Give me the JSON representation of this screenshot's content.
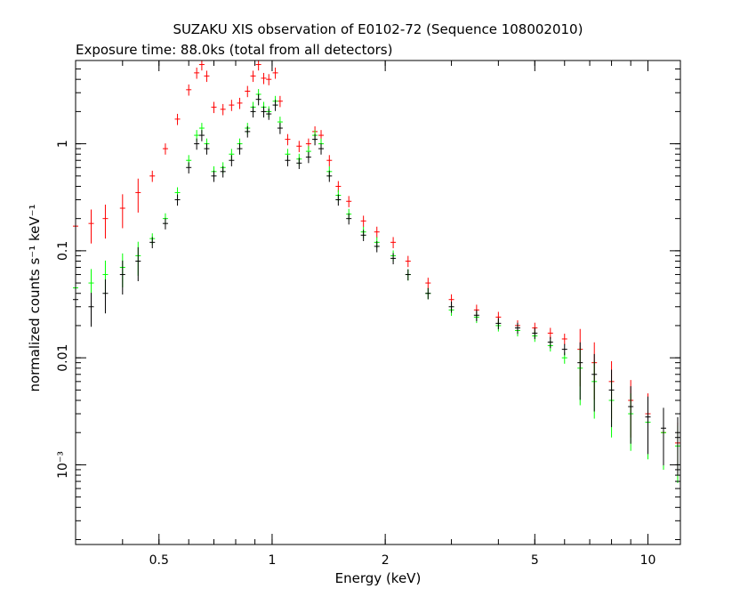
{
  "chart_data": {
    "type": "scatter",
    "title": "SUZAKU XIS observation of E0102-72 (Sequence 108002010)",
    "subtitle": "Exposure time: 88.0ks (total from all detectors)",
    "xlabel": "Energy (keV)",
    "ylabel": "normalized counts s⁻¹ keV⁻¹",
    "x_scale": "log",
    "y_scale": "log",
    "xlim": [
      0.3,
      12.2
    ],
    "ylim": [
      0.00018,
      6.0
    ],
    "x_ticks": [
      {
        "value": 0.5,
        "label": "0.5"
      },
      {
        "value": 1,
        "label": "1"
      },
      {
        "value": 2,
        "label": "2"
      },
      {
        "value": 5,
        "label": "5"
      },
      {
        "value": 10,
        "label": "10"
      }
    ],
    "y_ticks": [
      {
        "value": 0.001,
        "label": "10⁻³"
      },
      {
        "value": 0.01,
        "label": "0.01"
      },
      {
        "value": 0.1,
        "label": "0.1"
      },
      {
        "value": 1,
        "label": "1"
      }
    ],
    "grid": false,
    "legend": "none",
    "series": [
      {
        "color": "#ff0000",
        "points": [
          [
            0.3,
            0.17
          ],
          [
            0.33,
            0.18
          ],
          [
            0.36,
            0.2
          ],
          [
            0.4,
            0.25
          ],
          [
            0.44,
            0.35
          ],
          [
            0.48,
            0.5
          ],
          [
            0.52,
            0.9
          ],
          [
            0.56,
            1.7
          ],
          [
            0.6,
            3.2
          ],
          [
            0.63,
            4.6
          ],
          [
            0.65,
            5.5
          ],
          [
            0.67,
            4.3
          ],
          [
            0.7,
            2.2
          ],
          [
            0.74,
            2.1
          ],
          [
            0.78,
            2.3
          ],
          [
            0.82,
            2.4
          ],
          [
            0.86,
            3.1
          ],
          [
            0.89,
            4.3
          ],
          [
            0.92,
            5.5
          ],
          [
            0.95,
            4.1
          ],
          [
            0.98,
            4.0
          ],
          [
            1.02,
            4.6
          ],
          [
            1.05,
            2.5
          ],
          [
            1.1,
            1.1
          ],
          [
            1.18,
            0.95
          ],
          [
            1.25,
            1.0
          ],
          [
            1.3,
            1.3
          ],
          [
            1.35,
            1.2
          ],
          [
            1.42,
            0.7
          ],
          [
            1.5,
            0.4
          ],
          [
            1.6,
            0.29
          ],
          [
            1.75,
            0.19
          ],
          [
            1.9,
            0.15
          ],
          [
            2.1,
            0.12
          ],
          [
            2.3,
            0.08
          ],
          [
            2.6,
            0.05
          ],
          [
            3.0,
            0.035
          ],
          [
            3.5,
            0.028
          ],
          [
            4.0,
            0.024
          ],
          [
            4.5,
            0.02
          ],
          [
            5.0,
            0.019
          ],
          [
            5.5,
            0.017
          ],
          [
            6.0,
            0.015
          ],
          [
            6.6,
            0.012
          ],
          [
            7.2,
            0.009
          ],
          [
            8.0,
            0.006
          ],
          [
            9.0,
            0.004
          ],
          [
            10.0,
            0.003
          ],
          [
            11.0,
            0.002
          ],
          [
            12.0,
            0.0016
          ]
        ]
      },
      {
        "color": "#00ff00",
        "points": [
          [
            0.3,
            0.045
          ],
          [
            0.33,
            0.05
          ],
          [
            0.36,
            0.06
          ],
          [
            0.4,
            0.07
          ],
          [
            0.44,
            0.09
          ],
          [
            0.48,
            0.13
          ],
          [
            0.52,
            0.2
          ],
          [
            0.56,
            0.35
          ],
          [
            0.6,
            0.7
          ],
          [
            0.63,
            1.2
          ],
          [
            0.65,
            1.4
          ],
          [
            0.67,
            1.0
          ],
          [
            0.7,
            0.55
          ],
          [
            0.74,
            0.6
          ],
          [
            0.78,
            0.8
          ],
          [
            0.82,
            1.0
          ],
          [
            0.86,
            1.4
          ],
          [
            0.89,
            2.2
          ],
          [
            0.92,
            2.9
          ],
          [
            0.95,
            2.2
          ],
          [
            0.98,
            2.0
          ],
          [
            1.02,
            2.5
          ],
          [
            1.05,
            1.6
          ],
          [
            1.1,
            0.8
          ],
          [
            1.18,
            0.72
          ],
          [
            1.25,
            0.85
          ],
          [
            1.3,
            1.2
          ],
          [
            1.35,
            1.0
          ],
          [
            1.42,
            0.55
          ],
          [
            1.5,
            0.33
          ],
          [
            1.6,
            0.22
          ],
          [
            1.75,
            0.15
          ],
          [
            1.9,
            0.12
          ],
          [
            2.1,
            0.09
          ],
          [
            2.3,
            0.06
          ],
          [
            2.6,
            0.04
          ],
          [
            3.0,
            0.028
          ],
          [
            3.5,
            0.024
          ],
          [
            4.0,
            0.02
          ],
          [
            4.5,
            0.018
          ],
          [
            5.0,
            0.016
          ],
          [
            5.5,
            0.013
          ],
          [
            6.0,
            0.01
          ],
          [
            6.6,
            0.008
          ],
          [
            7.2,
            0.006
          ],
          [
            8.0,
            0.004
          ],
          [
            9.0,
            0.003
          ],
          [
            10.0,
            0.0025
          ],
          [
            11.0,
            0.002
          ],
          [
            12.0,
            0.0015
          ]
        ]
      },
      {
        "color": "#000000",
        "points": [
          [
            0.3,
            0.035
          ],
          [
            0.33,
            0.03
          ],
          [
            0.36,
            0.04
          ],
          [
            0.4,
            0.06
          ],
          [
            0.44,
            0.08
          ],
          [
            0.48,
            0.12
          ],
          [
            0.52,
            0.18
          ],
          [
            0.56,
            0.3
          ],
          [
            0.6,
            0.6
          ],
          [
            0.63,
            1.0
          ],
          [
            0.65,
            1.2
          ],
          [
            0.67,
            0.9
          ],
          [
            0.7,
            0.5
          ],
          [
            0.74,
            0.55
          ],
          [
            0.78,
            0.7
          ],
          [
            0.82,
            0.9
          ],
          [
            0.86,
            1.3
          ],
          [
            0.89,
            2.0
          ],
          [
            0.92,
            2.6
          ],
          [
            0.95,
            2.0
          ],
          [
            0.98,
            1.9
          ],
          [
            1.02,
            2.3
          ],
          [
            1.05,
            1.4
          ],
          [
            1.1,
            0.7
          ],
          [
            1.18,
            0.66
          ],
          [
            1.25,
            0.75
          ],
          [
            1.3,
            1.1
          ],
          [
            1.35,
            0.9
          ],
          [
            1.42,
            0.5
          ],
          [
            1.5,
            0.3
          ],
          [
            1.6,
            0.2
          ],
          [
            1.75,
            0.14
          ],
          [
            1.9,
            0.11
          ],
          [
            2.1,
            0.085
          ],
          [
            2.3,
            0.06
          ],
          [
            2.6,
            0.04
          ],
          [
            3.0,
            0.03
          ],
          [
            3.5,
            0.025
          ],
          [
            4.0,
            0.021
          ],
          [
            4.5,
            0.019
          ],
          [
            5.0,
            0.017
          ],
          [
            5.5,
            0.014
          ],
          [
            6.0,
            0.012
          ],
          [
            6.6,
            0.009
          ],
          [
            7.2,
            0.007
          ],
          [
            8.0,
            0.005
          ],
          [
            9.0,
            0.0035
          ],
          [
            10.0,
            0.0028
          ],
          [
            11.0,
            0.0022
          ],
          [
            12.0,
            0.0018
          ]
        ]
      }
    ]
  }
}
